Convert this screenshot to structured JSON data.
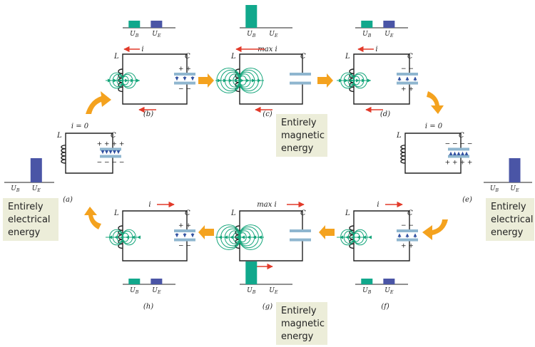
{
  "colors": {
    "magnetic_bar": "#11a88c",
    "electric_bar": "#4a55a6",
    "field_line": "#13a57a",
    "capacitor_plate": "#8fb6cf",
    "current_arrow": "#e23a2a",
    "cycle_arrow": "#f4a21e",
    "note_box": "#ecedd9"
  },
  "energy_axis": {
    "ub": "U_B",
    "ue": "U_E"
  },
  "states": [
    {
      "id": "a",
      "label": "(a)",
      "UB": 0,
      "UE": 1,
      "current": "i = 0",
      "L": "L",
      "C": "C",
      "plate_top": "+ + + +",
      "plate_bottom": "− − − −"
    },
    {
      "id": "b",
      "label": "(b)",
      "UB": 0.5,
      "UE": 0.5,
      "current": "i",
      "L": "L",
      "C": "C",
      "plate_top": "+ +",
      "plate_bottom": "− −"
    },
    {
      "id": "c",
      "label": "(c)",
      "UB": 1,
      "UE": 0,
      "current": "max i",
      "L": "L",
      "C": "C"
    },
    {
      "id": "d",
      "label": "(d)",
      "UB": 0.5,
      "UE": 0.5,
      "current": "i",
      "L": "L",
      "C": "C",
      "plate_top": "− −",
      "plate_bottom": "+ +"
    },
    {
      "id": "e",
      "label": "(e)",
      "UB": 0,
      "UE": 1,
      "current": "i = 0",
      "L": "L",
      "C": "C",
      "plate_top": "− − − −",
      "plate_bottom": "+ + + +"
    },
    {
      "id": "f",
      "label": "(f)",
      "UB": 0.5,
      "UE": 0.5,
      "current": "i",
      "L": "L",
      "C": "C",
      "plate_top": "− −",
      "plate_bottom": "+ +"
    },
    {
      "id": "g",
      "label": "(g)",
      "UB": 1,
      "UE": 0,
      "current": "max i",
      "L": "L",
      "C": "C"
    },
    {
      "id": "h",
      "label": "(h)",
      "UB": 0.5,
      "UE": 0.5,
      "current": "i",
      "L": "L",
      "C": "C",
      "plate_top": "+ +",
      "plate_bottom": "− −"
    }
  ],
  "notes": {
    "left": [
      "Entirely",
      "electrical",
      "energy"
    ],
    "right": [
      "Entirely",
      "electrical",
      "energy"
    ],
    "top": [
      "Entirely",
      "magnetic",
      "energy"
    ],
    "bottom": [
      "Entirely",
      "magnetic",
      "energy"
    ]
  }
}
